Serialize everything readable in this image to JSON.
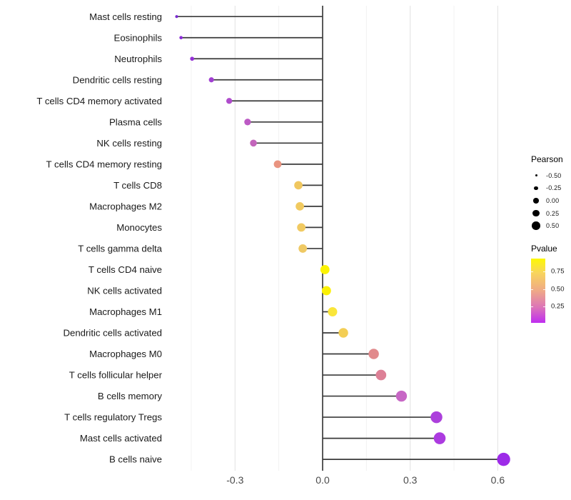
{
  "chart_data": {
    "type": "scatter",
    "variant": "lollipop",
    "title": "",
    "xlabel": "",
    "ylabel": "",
    "x_axis": {
      "tick_labels": [
        "-0.3",
        "0.0",
        "0.3",
        "0.6"
      ],
      "tick_values": [
        -0.3,
        0.0,
        0.3,
        0.6
      ],
      "range": [
        -0.56,
        0.68
      ],
      "gridlines_major": [
        -0.3,
        0.3,
        0.6
      ],
      "gridlines_minor": [
        -0.45,
        -0.15,
        0.15,
        0.45
      ],
      "zero_line": 0.0
    },
    "rows": [
      {
        "label": "Mast cells resting",
        "pearson": -0.5,
        "color": "#7a2bd0"
      },
      {
        "label": "Eosinophils",
        "pearson": -0.485,
        "color": "#8b2bd8"
      },
      {
        "label": "Neutrophils",
        "pearson": -0.447,
        "color": "#9430d6"
      },
      {
        "label": "Dendritic cells resting",
        "pearson": -0.381,
        "color": "#a13fd2"
      },
      {
        "label": "T cells CD4 memory activated",
        "pearson": -0.32,
        "color": "#af4ccc"
      },
      {
        "label": "Plasma cells",
        "pearson": -0.257,
        "color": "#bc5ac4"
      },
      {
        "label": "NK cells resting",
        "pearson": -0.237,
        "color": "#c365bb"
      },
      {
        "label": "T cells CD4 memory resting",
        "pearson": -0.154,
        "color": "#e99480"
      },
      {
        "label": "T cells CD8",
        "pearson": -0.083,
        "color": "#f0c75f"
      },
      {
        "label": "Macrophages M2",
        "pearson": -0.078,
        "color": "#f1ca60"
      },
      {
        "label": "Monocytes",
        "pearson": -0.073,
        "color": "#f1ca62"
      },
      {
        "label": "T cells gamma delta",
        "pearson": -0.068,
        "color": "#efc964"
      },
      {
        "label": "T cells CD4 naive",
        "pearson": 0.008,
        "color": "#fcf303"
      },
      {
        "label": "NK cells activated",
        "pearson": 0.013,
        "color": "#fbf005"
      },
      {
        "label": "Macrophages M1",
        "pearson": 0.034,
        "color": "#fae63a"
      },
      {
        "label": "Dendritic cells activated",
        "pearson": 0.071,
        "color": "#f3ce55"
      },
      {
        "label": "Macrophages M0",
        "pearson": 0.175,
        "color": "#e18a8c"
      },
      {
        "label": "T cells follicular helper",
        "pearson": 0.2,
        "color": "#dd8096"
      },
      {
        "label": "B cells memory",
        "pearson": 0.27,
        "color": "#c767c5"
      },
      {
        "label": "T cells regulatory  Tregs",
        "pearson": 0.39,
        "color": "#ac40dc"
      },
      {
        "label": "Mast cells activated",
        "pearson": 0.401,
        "color": "#ac3be0"
      },
      {
        "label": "B cells naive",
        "pearson": 0.62,
        "color": "#9d2be8"
      }
    ],
    "legend_size": {
      "title": "Pearson",
      "items": [
        "-0.50",
        "-0.25",
        "0.00",
        "0.25",
        "0.50"
      ]
    },
    "legend_color": {
      "title": "Pvalue",
      "tick_labels": [
        "0.75",
        "0.50",
        "0.25"
      ],
      "gradient": [
        "#fdf903",
        "#f8d55c",
        "#efa987",
        "#dc74b8",
        "#bf2df0"
      ]
    }
  },
  "styles": {
    "stem_color": "#3a3a3a",
    "zero_line_color": "#000000",
    "grid_major_color": "#e4e4e4",
    "grid_minor_color": "#f0f0f0",
    "y_label_color": "#1a1a1a",
    "x_tick_color": "#4a4a4a"
  }
}
